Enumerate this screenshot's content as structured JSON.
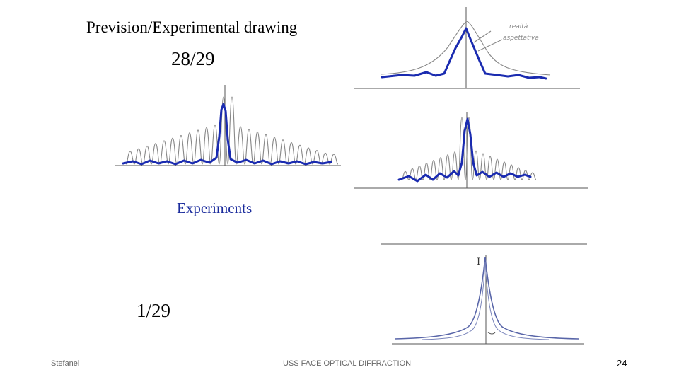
{
  "slide": {
    "title": "Prevision/Experimental drawing",
    "ratio_top": "28/29",
    "experiments_label": "Experiments",
    "ratio_bottom": "1/29"
  },
  "footer": {
    "author": "Stefanel",
    "course": "USS FACE OPTICAL DIFFRACTION",
    "page_number": "24"
  },
  "colors": {
    "experimental_curve": "#1a2bb0",
    "prediction_curve": "#888888",
    "experiments_text": "#1a2b9c"
  },
  "figures": [
    {
      "name": "single-slit-sketch",
      "annotations": [
        "realtà",
        "aspettativa"
      ]
    },
    {
      "name": "multi-fringe-sketch"
    },
    {
      "name": "multi-fringe-sketch-2"
    },
    {
      "name": "peak-graph",
      "axis_label": "I"
    }
  ]
}
